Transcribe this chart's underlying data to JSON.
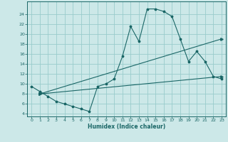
{
  "xlabel": "Humidex (Indice chaleur)",
  "bg_color": "#cce8e8",
  "grid_color": "#99cccc",
  "line_color": "#1a6666",
  "xlim": [
    -0.5,
    23.5
  ],
  "ylim": [
    3.5,
    26.5
  ],
  "xticks": [
    0,
    1,
    2,
    3,
    4,
    5,
    6,
    7,
    8,
    9,
    10,
    11,
    12,
    13,
    14,
    15,
    16,
    17,
    18,
    19,
    20,
    21,
    22,
    23
  ],
  "yticks": [
    4,
    6,
    8,
    10,
    12,
    14,
    16,
    18,
    20,
    22,
    24
  ],
  "line1_x": [
    0,
    1,
    2,
    3,
    4,
    5,
    6,
    7,
    8,
    9,
    10,
    11,
    12,
    13,
    14,
    15,
    16,
    17,
    18,
    19,
    20,
    21,
    22,
    23
  ],
  "line1_y": [
    9.5,
    8.5,
    7.5,
    6.5,
    6.0,
    5.5,
    5.0,
    4.5,
    9.5,
    10.0,
    11.0,
    15.5,
    21.5,
    18.5,
    25.0,
    25.0,
    24.5,
    23.5,
    19.0,
    14.5,
    16.5,
    14.5,
    11.5,
    11.0
  ],
  "line2_x": [
    1,
    23
  ],
  "line2_y": [
    8.0,
    19.0
  ],
  "line3_x": [
    1,
    23
  ],
  "line3_y": [
    8.0,
    11.5
  ],
  "marker_size": 2.5,
  "lw": 0.8,
  "tick_fontsize": 4.5,
  "xlabel_fontsize": 5.5
}
